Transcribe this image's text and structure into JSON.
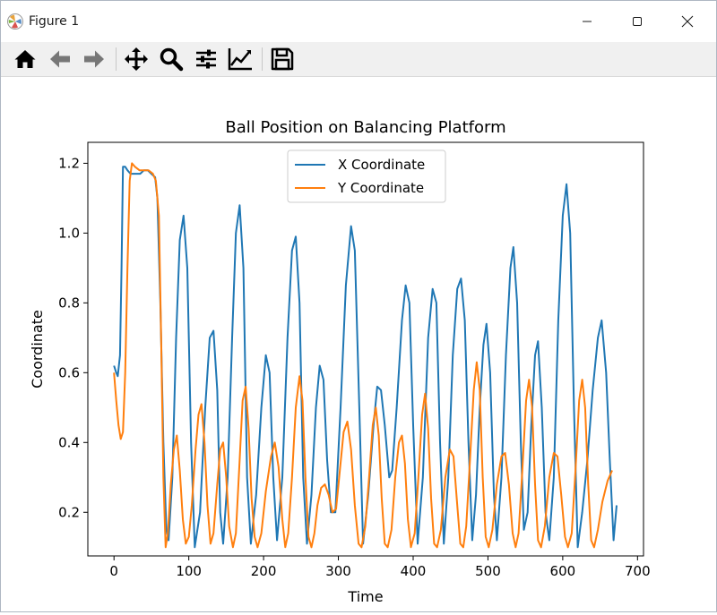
{
  "window": {
    "title": "Figure 1",
    "controls": {
      "minimize": "minimize",
      "maximize": "maximize",
      "close": "close"
    }
  },
  "toolbar": {
    "tools": [
      {
        "name": "home-icon"
      },
      {
        "name": "back-arrow-icon"
      },
      {
        "name": "forward-arrow-icon"
      },
      {
        "name": "pan-icon"
      },
      {
        "name": "zoom-icon"
      },
      {
        "name": "subplots-icon"
      },
      {
        "name": "edit-axes-icon"
      },
      {
        "name": "save-icon"
      }
    ]
  },
  "chart_data": {
    "type": "line",
    "title": "Ball Position on Balancing Platform",
    "xlabel": "Time",
    "ylabel": "Coordinate",
    "xlim": [
      -35,
      708
    ],
    "ylim": [
      0.075,
      1.26
    ],
    "xticks": [
      0,
      100,
      200,
      300,
      400,
      500,
      600,
      700
    ],
    "yticks": [
      0.2,
      0.4,
      0.6,
      0.8,
      1.0,
      1.2
    ],
    "ytick_labels": [
      "0.2",
      "0.4",
      "0.6",
      "0.8",
      "1.0",
      "1.2"
    ],
    "legend": {
      "position": "upper center"
    },
    "series": [
      {
        "name": "X Coordinate",
        "color": "#1f77b4",
        "points": [
          [
            0,
            0.62
          ],
          [
            3,
            0.6
          ],
          [
            5,
            0.59
          ],
          [
            8,
            0.65
          ],
          [
            10,
            0.9
          ],
          [
            12,
            1.19
          ],
          [
            15,
            1.19
          ],
          [
            18,
            1.18
          ],
          [
            22,
            1.17
          ],
          [
            25,
            1.17
          ],
          [
            30,
            1.17
          ],
          [
            35,
            1.17
          ],
          [
            40,
            1.18
          ],
          [
            45,
            1.18
          ],
          [
            50,
            1.17
          ],
          [
            55,
            1.16
          ],
          [
            58,
            1.1
          ],
          [
            62,
            0.8
          ],
          [
            66,
            0.4
          ],
          [
            70,
            0.15
          ],
          [
            73,
            0.12
          ],
          [
            78,
            0.3
          ],
          [
            83,
            0.7
          ],
          [
            88,
            0.98
          ],
          [
            93,
            1.05
          ],
          [
            98,
            0.9
          ],
          [
            103,
            0.4
          ],
          [
            108,
            0.1
          ],
          [
            115,
            0.2
          ],
          [
            122,
            0.5
          ],
          [
            128,
            0.7
          ],
          [
            133,
            0.72
          ],
          [
            138,
            0.55
          ],
          [
            142,
            0.2
          ],
          [
            146,
            0.11
          ],
          [
            152,
            0.3
          ],
          [
            158,
            0.7
          ],
          [
            163,
            1.0
          ],
          [
            168,
            1.08
          ],
          [
            173,
            0.9
          ],
          [
            178,
            0.3
          ],
          [
            183,
            0.11
          ],
          [
            190,
            0.25
          ],
          [
            197,
            0.5
          ],
          [
            203,
            0.65
          ],
          [
            208,
            0.6
          ],
          [
            213,
            0.3
          ],
          [
            218,
            0.12
          ],
          [
            225,
            0.3
          ],
          [
            232,
            0.7
          ],
          [
            238,
            0.95
          ],
          [
            243,
            0.99
          ],
          [
            248,
            0.8
          ],
          [
            253,
            0.3
          ],
          [
            258,
            0.11
          ],
          [
            264,
            0.25
          ],
          [
            270,
            0.5
          ],
          [
            275,
            0.62
          ],
          [
            280,
            0.58
          ],
          [
            285,
            0.35
          ],
          [
            290,
            0.2
          ],
          [
            296,
            0.2
          ],
          [
            303,
            0.5
          ],
          [
            310,
            0.85
          ],
          [
            317,
            1.02
          ],
          [
            322,
            0.95
          ],
          [
            328,
            0.5
          ],
          [
            333,
            0.11
          ],
          [
            340,
            0.25
          ],
          [
            347,
            0.45
          ],
          [
            352,
            0.56
          ],
          [
            357,
            0.55
          ],
          [
            362,
            0.45
          ],
          [
            368,
            0.3
          ],
          [
            372,
            0.32
          ],
          [
            378,
            0.5
          ],
          [
            385,
            0.75
          ],
          [
            390,
            0.85
          ],
          [
            395,
            0.8
          ],
          [
            400,
            0.45
          ],
          [
            406,
            0.11
          ],
          [
            413,
            0.3
          ],
          [
            420,
            0.7
          ],
          [
            426,
            0.84
          ],
          [
            431,
            0.8
          ],
          [
            436,
            0.4
          ],
          [
            441,
            0.11
          ],
          [
            447,
            0.3
          ],
          [
            453,
            0.65
          ],
          [
            459,
            0.84
          ],
          [
            464,
            0.87
          ],
          [
            469,
            0.75
          ],
          [
            474,
            0.4
          ],
          [
            479,
            0.12
          ],
          [
            484,
            0.25
          ],
          [
            489,
            0.5
          ],
          [
            494,
            0.68
          ],
          [
            498,
            0.74
          ],
          [
            503,
            0.6
          ],
          [
            508,
            0.25
          ],
          [
            512,
            0.12
          ],
          [
            518,
            0.3
          ],
          [
            524,
            0.65
          ],
          [
            530,
            0.9
          ],
          [
            534,
            0.96
          ],
          [
            539,
            0.8
          ],
          [
            544,
            0.4
          ],
          [
            548,
            0.15
          ],
          [
            553,
            0.2
          ],
          [
            558,
            0.45
          ],
          [
            563,
            0.65
          ],
          [
            567,
            0.69
          ],
          [
            572,
            0.5
          ],
          [
            577,
            0.2
          ],
          [
            582,
            0.12
          ],
          [
            588,
            0.3
          ],
          [
            594,
            0.75
          ],
          [
            600,
            1.05
          ],
          [
            605,
            1.14
          ],
          [
            610,
            1.0
          ],
          [
            615,
            0.5
          ],
          [
            620,
            0.1
          ],
          [
            626,
            0.2
          ],
          [
            633,
            0.35
          ],
          [
            640,
            0.55
          ],
          [
            647,
            0.7
          ],
          [
            652,
            0.75
          ],
          [
            658,
            0.6
          ],
          [
            663,
            0.35
          ],
          [
            668,
            0.12
          ],
          [
            672,
            0.22
          ]
        ]
      },
      {
        "name": "Y Coordinate",
        "color": "#ff7f0e",
        "points": [
          [
            0,
            0.6
          ],
          [
            3,
            0.52
          ],
          [
            6,
            0.45
          ],
          [
            9,
            0.41
          ],
          [
            12,
            0.43
          ],
          [
            15,
            0.6
          ],
          [
            18,
            0.9
          ],
          [
            21,
            1.15
          ],
          [
            24,
            1.2
          ],
          [
            28,
            1.19
          ],
          [
            34,
            1.18
          ],
          [
            40,
            1.18
          ],
          [
            46,
            1.18
          ],
          [
            52,
            1.17
          ],
          [
            56,
            1.15
          ],
          [
            60,
            1.05
          ],
          [
            63,
            0.7
          ],
          [
            66,
            0.3
          ],
          [
            69,
            0.1
          ],
          [
            72,
            0.14
          ],
          [
            76,
            0.28
          ],
          [
            80,
            0.38
          ],
          [
            84,
            0.42
          ],
          [
            88,
            0.32
          ],
          [
            92,
            0.18
          ],
          [
            96,
            0.11
          ],
          [
            100,
            0.13
          ],
          [
            104,
            0.22
          ],
          [
            109,
            0.38
          ],
          [
            113,
            0.48
          ],
          [
            117,
            0.51
          ],
          [
            121,
            0.4
          ],
          [
            125,
            0.22
          ],
          [
            129,
            0.11
          ],
          [
            133,
            0.14
          ],
          [
            138,
            0.28
          ],
          [
            142,
            0.38
          ],
          [
            146,
            0.4
          ],
          [
            150,
            0.3
          ],
          [
            154,
            0.16
          ],
          [
            159,
            0.1
          ],
          [
            163,
            0.14
          ],
          [
            168,
            0.35
          ],
          [
            172,
            0.52
          ],
          [
            176,
            0.56
          ],
          [
            180,
            0.44
          ],
          [
            184,
            0.24
          ],
          [
            188,
            0.13
          ],
          [
            192,
            0.1
          ],
          [
            197,
            0.14
          ],
          [
            203,
            0.26
          ],
          [
            210,
            0.36
          ],
          [
            215,
            0.4
          ],
          [
            220,
            0.33
          ],
          [
            225,
            0.18
          ],
          [
            229,
            0.1
          ],
          [
            233,
            0.14
          ],
          [
            238,
            0.3
          ],
          [
            243,
            0.5
          ],
          [
            248,
            0.59
          ],
          [
            252,
            0.52
          ],
          [
            256,
            0.3
          ],
          [
            260,
            0.13
          ],
          [
            264,
            0.1
          ],
          [
            268,
            0.14
          ],
          [
            272,
            0.22
          ],
          [
            277,
            0.27
          ],
          [
            282,
            0.28
          ],
          [
            287,
            0.25
          ],
          [
            292,
            0.2
          ],
          [
            297,
            0.21
          ],
          [
            302,
            0.32
          ],
          [
            307,
            0.43
          ],
          [
            312,
            0.46
          ],
          [
            317,
            0.38
          ],
          [
            322,
            0.22
          ],
          [
            327,
            0.11
          ],
          [
            331,
            0.1
          ],
          [
            336,
            0.16
          ],
          [
            341,
            0.3
          ],
          [
            346,
            0.45
          ],
          [
            350,
            0.5
          ],
          [
            354,
            0.42
          ],
          [
            358,
            0.24
          ],
          [
            362,
            0.11
          ],
          [
            366,
            0.1
          ],
          [
            371,
            0.15
          ],
          [
            376,
            0.3
          ],
          [
            381,
            0.4
          ],
          [
            385,
            0.42
          ],
          [
            389,
            0.34
          ],
          [
            393,
            0.18
          ],
          [
            397,
            0.1
          ],
          [
            402,
            0.14
          ],
          [
            407,
            0.3
          ],
          [
            412,
            0.48
          ],
          [
            416,
            0.54
          ],
          [
            420,
            0.44
          ],
          [
            424,
            0.24
          ],
          [
            428,
            0.11
          ],
          [
            432,
            0.1
          ],
          [
            437,
            0.15
          ],
          [
            443,
            0.3
          ],
          [
            449,
            0.38
          ],
          [
            454,
            0.36
          ],
          [
            459,
            0.22
          ],
          [
            463,
            0.11
          ],
          [
            467,
            0.1
          ],
          [
            471,
            0.16
          ],
          [
            476,
            0.35
          ],
          [
            481,
            0.55
          ],
          [
            485,
            0.63
          ],
          [
            489,
            0.55
          ],
          [
            493,
            0.3
          ],
          [
            497,
            0.13
          ],
          [
            501,
            0.1
          ],
          [
            506,
            0.15
          ],
          [
            512,
            0.28
          ],
          [
            518,
            0.36
          ],
          [
            523,
            0.37
          ],
          [
            528,
            0.28
          ],
          [
            533,
            0.14
          ],
          [
            537,
            0.1
          ],
          [
            541,
            0.14
          ],
          [
            546,
            0.32
          ],
          [
            551,
            0.52
          ],
          [
            555,
            0.58
          ],
          [
            559,
            0.5
          ],
          [
            563,
            0.28
          ],
          [
            567,
            0.12
          ],
          [
            571,
            0.1
          ],
          [
            576,
            0.16
          ],
          [
            582,
            0.3
          ],
          [
            588,
            0.37
          ],
          [
            593,
            0.36
          ],
          [
            598,
            0.25
          ],
          [
            603,
            0.13
          ],
          [
            607,
            0.1
          ],
          [
            612,
            0.14
          ],
          [
            617,
            0.32
          ],
          [
            622,
            0.52
          ],
          [
            626,
            0.58
          ],
          [
            630,
            0.5
          ],
          [
            634,
            0.28
          ],
          [
            638,
            0.12
          ],
          [
            642,
            0.1
          ],
          [
            647,
            0.15
          ],
          [
            653,
            0.23
          ],
          [
            660,
            0.29
          ],
          [
            666,
            0.32
          ]
        ]
      }
    ]
  }
}
